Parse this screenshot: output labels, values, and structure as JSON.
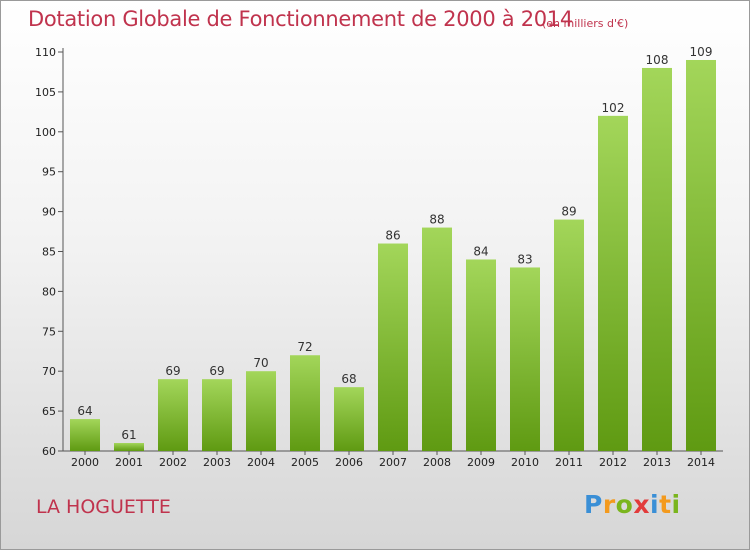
{
  "title": "Dotation Globale de Fonctionnement de 2000 à 2014",
  "subtitle": "(en milliers d'€)",
  "commune": "LA HOGUETTE",
  "logo": {
    "p": "P",
    "r": "r",
    "o": "o",
    "x": "x",
    "i1": "i",
    "t": "t",
    "i2": "i"
  },
  "colors": {
    "title": "#c0334d",
    "bar_top": "#a3d65a",
    "bar_bottom": "#5f9a12"
  },
  "chart_data": {
    "type": "bar",
    "title": "Dotation Globale de Fonctionnement de 2000 à 2014",
    "subtitle": "(en milliers d'€)",
    "categories": [
      "2000",
      "2001",
      "2002",
      "2003",
      "2004",
      "2005",
      "2006",
      "2007",
      "2008",
      "2009",
      "2010",
      "2011",
      "2012",
      "2013",
      "2014"
    ],
    "values": [
      64,
      61,
      69,
      69,
      70,
      72,
      68,
      86,
      88,
      84,
      83,
      89,
      102,
      108,
      109
    ],
    "ylim": [
      60,
      110
    ],
    "yticks": [
      60,
      65,
      70,
      75,
      80,
      85,
      90,
      95,
      100,
      105,
      110
    ],
    "xlabel": "",
    "ylabel": "",
    "grid": false,
    "data_labels": true
  }
}
